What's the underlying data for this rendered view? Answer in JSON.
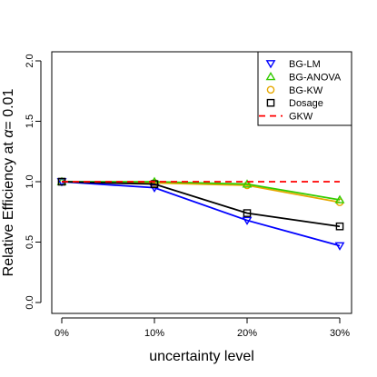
{
  "chart_data": {
    "type": "line",
    "xlabel": "uncertainty level",
    "ylabel_prefix": "Relative Efficiency at ",
    "ylabel_alpha": "α",
    "ylabel_suffix": "= 0.01",
    "x_ticks": [
      "0%",
      "10%",
      "20%",
      "30%"
    ],
    "y_ticks": [
      "0.0",
      "0.5",
      "1.0",
      "1.5",
      "2.0"
    ],
    "ylim": [
      0,
      2
    ],
    "grid": false,
    "legend_position": "top-right",
    "series": [
      {
        "name": "BG-LM",
        "color": "#0000ff",
        "marker": "triangle-down",
        "values": [
          1.0,
          0.95,
          0.68,
          0.47
        ]
      },
      {
        "name": "BG-ANOVA",
        "color": "#33cc00",
        "marker": "triangle-up",
        "values": [
          1.0,
          1.0,
          0.98,
          0.85
        ]
      },
      {
        "name": "BG-KW",
        "color": "#e6a800",
        "marker": "circle",
        "values": [
          1.0,
          0.99,
          0.97,
          0.83
        ]
      },
      {
        "name": "Dosage",
        "color": "#000000",
        "marker": "square",
        "values": [
          1.0,
          0.98,
          0.74,
          0.63
        ]
      },
      {
        "name": "GKW",
        "color": "#ff0000",
        "marker": "dashed-line",
        "values": [
          1.0,
          1.0,
          1.0,
          1.0
        ]
      }
    ]
  }
}
